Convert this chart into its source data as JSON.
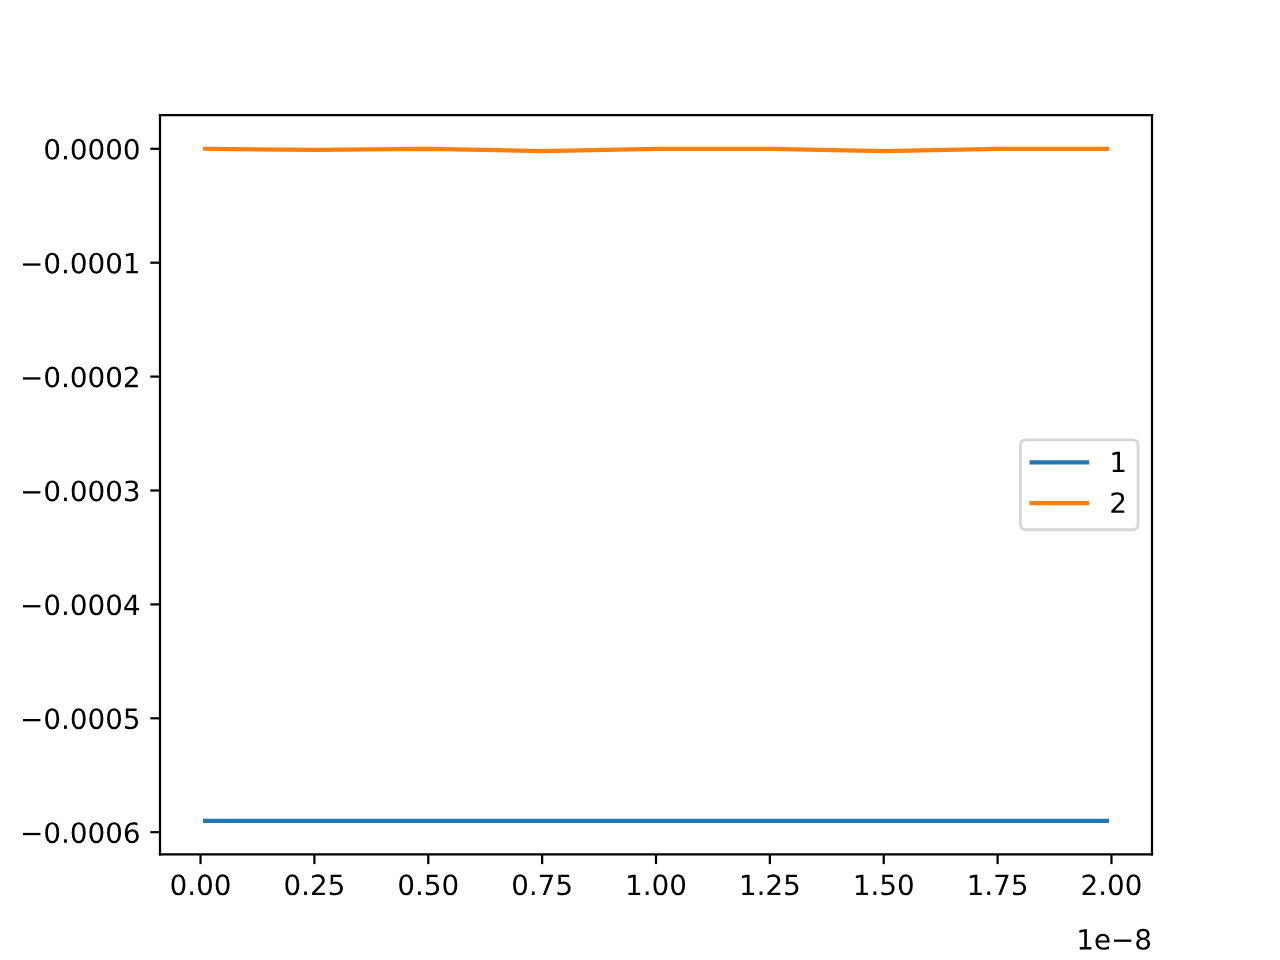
{
  "chart_data": {
    "type": "line",
    "x": [
      0.01,
      0.25,
      0.5,
      0.75,
      1.0,
      1.25,
      1.5,
      1.75,
      1.99
    ],
    "series": [
      {
        "name": "1",
        "color": "#1f77b4",
        "values": [
          -0.00059,
          -0.00059,
          -0.00059,
          -0.00059,
          -0.00059,
          -0.00059,
          -0.00059,
          -0.00059,
          -0.00059
        ]
      },
      {
        "name": "2",
        "color": "#ff7f0e",
        "values": [
          0.0,
          -1e-06,
          0.0,
          -2e-06,
          0.0,
          0.0,
          -2e-06,
          0.0,
          0.0
        ]
      }
    ],
    "xlim": [
      -0.089,
      2.089
    ],
    "xticks": [
      {
        "value": 0,
        "label": "0.00"
      },
      {
        "value": 0.25,
        "label": "0.25"
      },
      {
        "value": 0.5,
        "label": "0.50"
      },
      {
        "value": 0.75,
        "label": "0.75"
      },
      {
        "value": 1.0,
        "label": "1.00"
      },
      {
        "value": 1.25,
        "label": "1.25"
      },
      {
        "value": 1.5,
        "label": "1.50"
      },
      {
        "value": 1.75,
        "label": "1.75"
      },
      {
        "value": 2.0,
        "label": "2.00"
      }
    ],
    "ylim": [
      -0.0006195,
      2.95e-05
    ],
    "yticks": [
      {
        "value": 0,
        "label": "0.0000"
      },
      {
        "value": -0.0001,
        "label": "−0.0001"
      },
      {
        "value": -0.0002,
        "label": "−0.0002"
      },
      {
        "value": -0.0003,
        "label": "−0.0003"
      },
      {
        "value": -0.0004,
        "label": "−0.0004"
      },
      {
        "value": -0.0005,
        "label": "−0.0005"
      },
      {
        "value": -0.0006,
        "label": "−0.0006"
      }
    ],
    "annotations": [
      "1e−8"
    ],
    "legend": "right",
    "grid": false
  }
}
